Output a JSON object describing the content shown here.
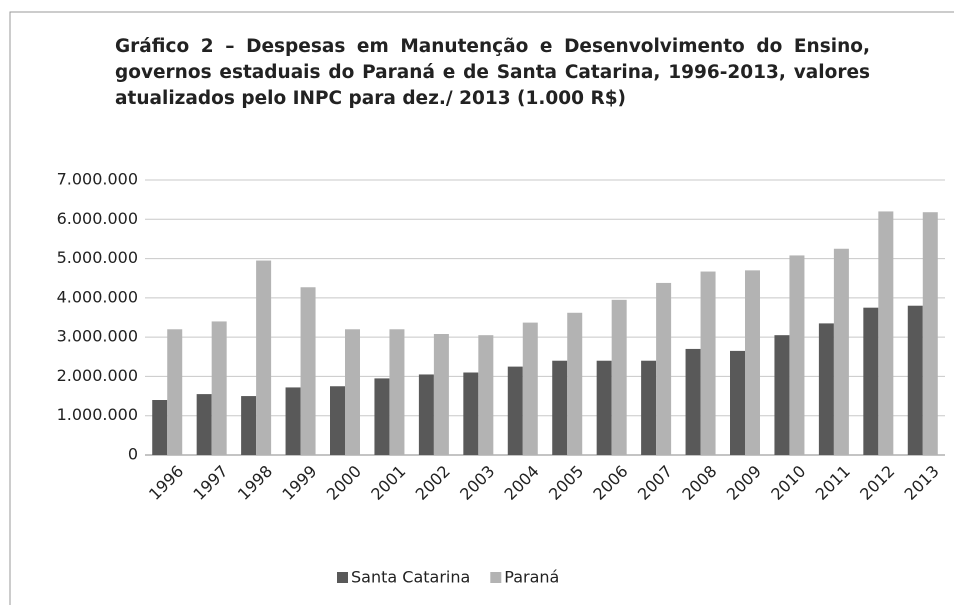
{
  "chart_data": {
    "type": "bar",
    "title": "Gráfico 2 – Despesas em Manutenção e Desenvolvimento do Ensino, governos estaduais do Paraná e de Santa Catarina, 1996-2013, valores atualizados pelo INPC para dez./ 2013 (1.000 R$)",
    "categories": [
      "1996",
      "1997",
      "1998",
      "1999",
      "2000",
      "2001",
      "2002",
      "2003",
      "2004",
      "2005",
      "2006",
      "2007",
      "2008",
      "2009",
      "2010",
      "2011",
      "2012",
      "2013"
    ],
    "series": [
      {
        "name": "Santa Catarina",
        "color": "#595959",
        "values": [
          1400000,
          1550000,
          1500000,
          1720000,
          1750000,
          1950000,
          2050000,
          2100000,
          2250000,
          2400000,
          2400000,
          2400000,
          2700000,
          2650000,
          3050000,
          3350000,
          3750000,
          3800000
        ]
      },
      {
        "name": "Paraná",
        "color": "#b3b3b3",
        "values": [
          3200000,
          3400000,
          4950000,
          4270000,
          3200000,
          3200000,
          3080000,
          3050000,
          3370000,
          3620000,
          3950000,
          4380000,
          4670000,
          4700000,
          5080000,
          5250000,
          6200000,
          6180000
        ]
      }
    ],
    "ylim": [
      0,
      7000000
    ],
    "yticks": [
      0,
      {
        "value": 1000000,
        "label": "1.000.000"
      },
      {
        "value": 2000000,
        "label": "2.000.000"
      },
      {
        "value": 3000000,
        "label": "3.000.000"
      },
      {
        "value": 4000000,
        "label": "4.000.000"
      },
      {
        "value": 5000000,
        "label": "5.000.000"
      },
      {
        "value": 6000000,
        "label": "6.000.000"
      },
      {
        "value": 7000000,
        "label": "7.000.000"
      }
    ],
    "grid": true,
    "legend": "bottom"
  }
}
